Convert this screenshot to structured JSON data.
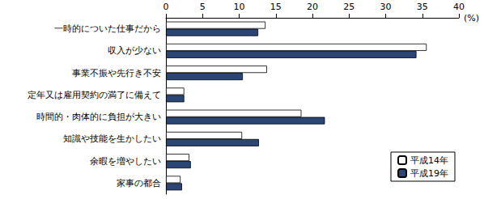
{
  "chart_data": {
    "type": "bar",
    "orientation": "horizontal",
    "xlabel": "(%)",
    "categories": [
      "一時的についた仕事だから",
      "収入が少ない",
      "事業不振や先行き不安",
      "定年又は雇用契約の満了に備えて",
      "時間的・肉体的に負担が大きい",
      "知識や技能を生かしたい",
      "余暇を増やしたい",
      "家事の都合"
    ],
    "series": [
      {
        "name": "平成14年",
        "color": "#ffffff",
        "values": [
          13.6,
          35.6,
          13.8,
          2.5,
          18.5,
          10.4,
          3.2,
          2.0
        ]
      },
      {
        "name": "平成19年",
        "color": "#2b4675",
        "values": [
          12.6,
          34.2,
          10.5,
          2.5,
          21.7,
          12.7,
          3.4,
          2.2
        ]
      }
    ],
    "xlim": [
      0,
      40
    ],
    "xticks": [
      0,
      5,
      10,
      15,
      20,
      25,
      30,
      35,
      40
    ],
    "grid": false,
    "legend": "lower right"
  }
}
